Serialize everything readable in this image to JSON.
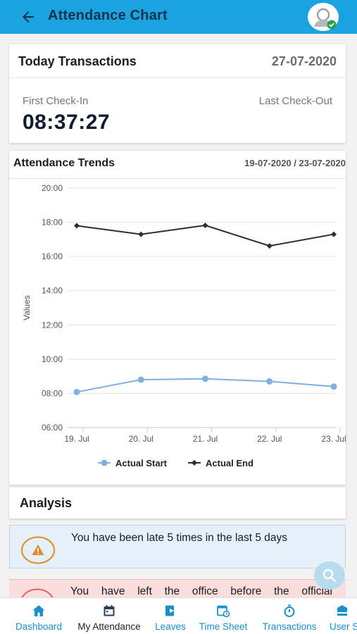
{
  "app_bar": {
    "title": "Attendance Chart"
  },
  "today": {
    "title": "Today Transactions",
    "date": "27-07-2020",
    "first_checkin_label": "First Check-In",
    "first_checkin_time": "08:37:27",
    "last_checkout_label": "Last Check-Out"
  },
  "trends": {
    "title": "Attendance Trends",
    "range": "19-07-2020 / 23-07-2020"
  },
  "chart_data": {
    "type": "line",
    "categories": [
      "19. Jul",
      "20. Jul",
      "21. Jul",
      "22. Jul",
      "23. Jul"
    ],
    "ylabel": "Values",
    "y_ticks": [
      "06:00",
      "08:00",
      "10:00",
      "12:00",
      "14:00",
      "16:00",
      "18:00",
      "20:00"
    ],
    "ylim": [
      6,
      20
    ],
    "grid": true,
    "legend_position": "bottom",
    "series": [
      {
        "name": "Actual Start",
        "color": "#7eb0e0",
        "marker": "circle",
        "values": [
          8.08,
          8.8,
          8.85,
          8.7,
          8.4
        ]
      },
      {
        "name": "Actual End",
        "color": "#2e2e2e",
        "marker": "diamond",
        "values": [
          17.8,
          17.3,
          17.82,
          16.62,
          17.3
        ]
      }
    ]
  },
  "analysis": {
    "title": "Analysis",
    "alerts": [
      {
        "text": "You have been late 5 times in the last 5 days",
        "color": "#e58a2a",
        "icon": "warning-icon"
      },
      {
        "text": "You have left the office before the official",
        "color": "#e0645c",
        "icon": "warning-icon"
      }
    ]
  },
  "colors": {
    "primary": "#1aa3df",
    "nav_text": "#1a8fca",
    "check_badge": "#2e9e52"
  },
  "bottom_nav": [
    {
      "label": "Dashboard",
      "icon": "home-icon",
      "active": false
    },
    {
      "label": "My Attendance",
      "icon": "calendar-icon",
      "active": true
    },
    {
      "label": "Leaves",
      "icon": "leave-icon",
      "active": false
    },
    {
      "label": "Time Sheet",
      "icon": "timesheet-icon",
      "active": false
    },
    {
      "label": "Transactions",
      "icon": "stopwatch-icon",
      "active": false
    },
    {
      "label": "User S",
      "icon": "user-settings-icon",
      "active": false
    }
  ]
}
